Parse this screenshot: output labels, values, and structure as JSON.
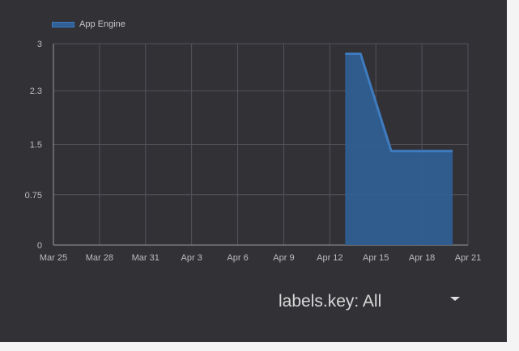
{
  "legend": {
    "label": "App Engine",
    "color": "#2f5f95"
  },
  "filter": {
    "label": "labels.key: All",
    "icon": "chevron-down-icon"
  },
  "chart_data": {
    "type": "area",
    "title": "",
    "xlabel": "",
    "ylabel": "",
    "x_ticks": [
      "Mar 25",
      "Mar 28",
      "Mar 31",
      "Apr 3",
      "Apr 6",
      "Apr 9",
      "Apr 12",
      "Apr 15",
      "Apr 18",
      "Apr 21"
    ],
    "y_ticks": [
      "0",
      "0.75",
      "1.5",
      "2.3",
      "3"
    ],
    "ylim": [
      0,
      3
    ],
    "xlim": [
      "Mar 25",
      "Apr 21"
    ],
    "grid": true,
    "legend_position": "top-left",
    "series": [
      {
        "name": "App Engine",
        "color": "#2f5f95",
        "line_color": "#3f7bbf",
        "points": [
          {
            "x": "Apr 13",
            "y": 2.85
          },
          {
            "x": "Apr 14",
            "y": 2.85
          },
          {
            "x": "Apr 16",
            "y": 1.4
          },
          {
            "x": "Apr 20",
            "y": 1.4
          }
        ]
      }
    ]
  }
}
